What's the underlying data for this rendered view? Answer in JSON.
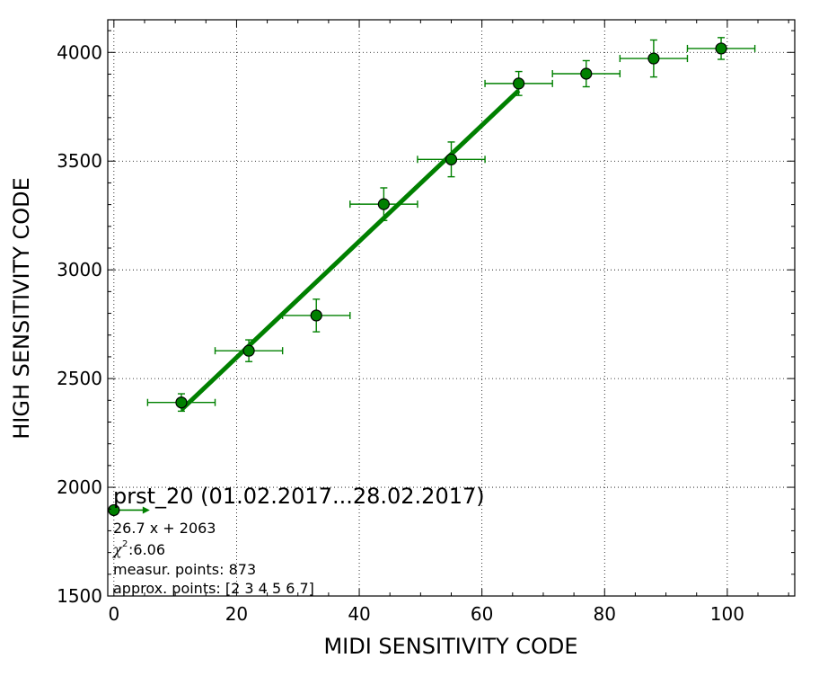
{
  "chart_data": {
    "type": "scatter",
    "xlabel": "MIDI SENSITIVITY CODE",
    "ylabel": "HIGH SENSITIVITY CODE",
    "xlim": [
      -1,
      111
    ],
    "ylim": [
      1500,
      4150
    ],
    "xticks": [
      0,
      20,
      40,
      60,
      80,
      100
    ],
    "yticks": [
      1500,
      2000,
      2500,
      3000,
      3500,
      4000
    ],
    "grid": true,
    "color": "#008000",
    "series": [
      {
        "x": [
          11,
          22,
          33,
          44,
          55,
          66,
          77,
          88,
          99
        ],
        "y": [
          2390,
          2628,
          2790,
          3302,
          3508,
          3857,
          3902,
          3972,
          4018
        ],
        "xerr": [
          5.5,
          5.5,
          5.5,
          5.5,
          5.5,
          5.5,
          5.5,
          5.5,
          5.5
        ],
        "yerr": [
          40,
          50,
          75,
          75,
          80,
          55,
          60,
          85,
          50
        ]
      }
    ],
    "fit": {
      "slope": 26.7,
      "intercept": 2063,
      "x_range": [
        11,
        66
      ]
    },
    "extra_point": {
      "x": 0,
      "y": 1895
    },
    "annotations": {
      "title": "prst_20 (01.02.2017...28.02.2017)",
      "equation": "26.7 x + 2063",
      "chi_symbol": "χ",
      "chi_power": "2",
      "chi_value": " :6.06",
      "measur_points": "measur. points: 873",
      "approx_points": "approx. points: [2 3 4 5 6 7]"
    }
  }
}
